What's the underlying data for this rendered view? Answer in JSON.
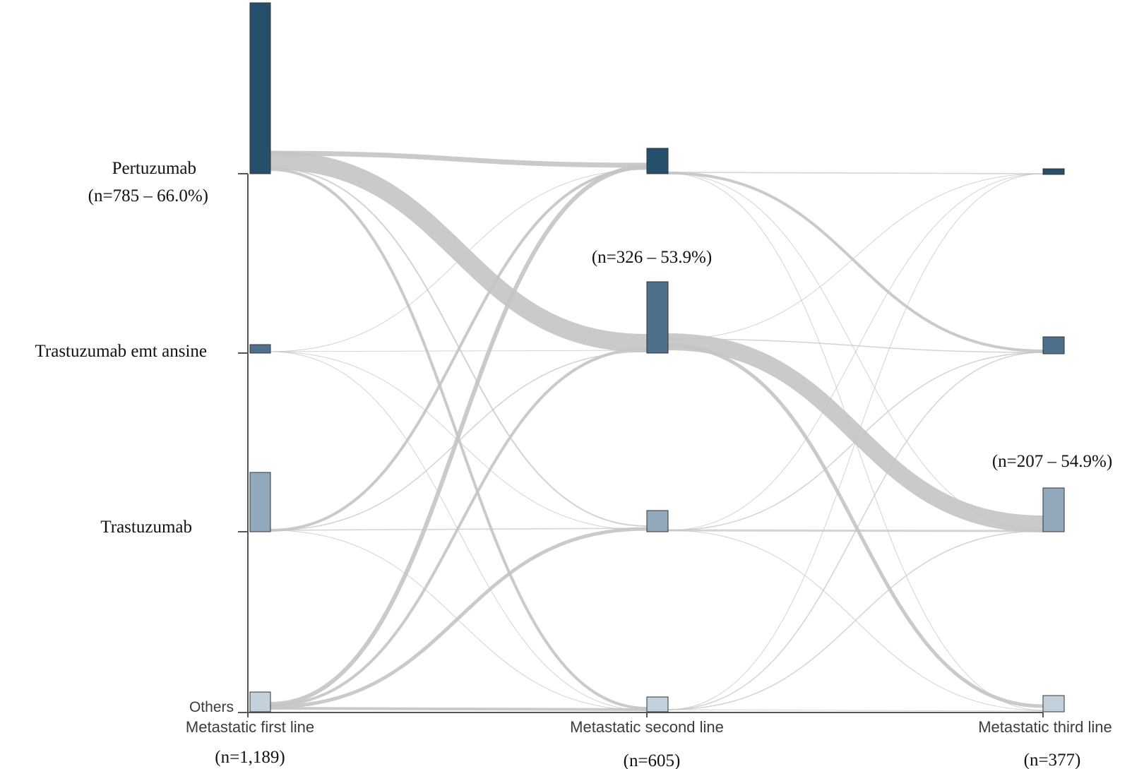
{
  "diagram": {
    "type": "sankey",
    "stages": [
      {
        "label": "Metastatic first line",
        "n_label": "(n=1,189)"
      },
      {
        "label": "Metastatic second line",
        "n_label": "(n=605)"
      },
      {
        "label": "Metastatic third line",
        "n_label": "(n=377)"
      }
    ],
    "treatments": [
      {
        "key": "pertuzumab",
        "label": "Pertuzumab",
        "color": "#264f6b"
      },
      {
        "key": "tdm1",
        "label": "Trastuzumab emt ansine",
        "color": "#4f708a"
      },
      {
        "key": "trastuzumab",
        "label": "Trastuzumab",
        "color": "#92a9bc"
      },
      {
        "key": "others",
        "label": "Others",
        "color": "#c3d1dc"
      }
    ],
    "annotations": {
      "first_pertuzumab": "(n=785 – 66.0%)",
      "second_tdm1": "(n=326 – 53.9%)",
      "third_trastuzumab": "(n=207 – 54.9%)"
    },
    "flow_color": "#c4c4c4"
  }
}
